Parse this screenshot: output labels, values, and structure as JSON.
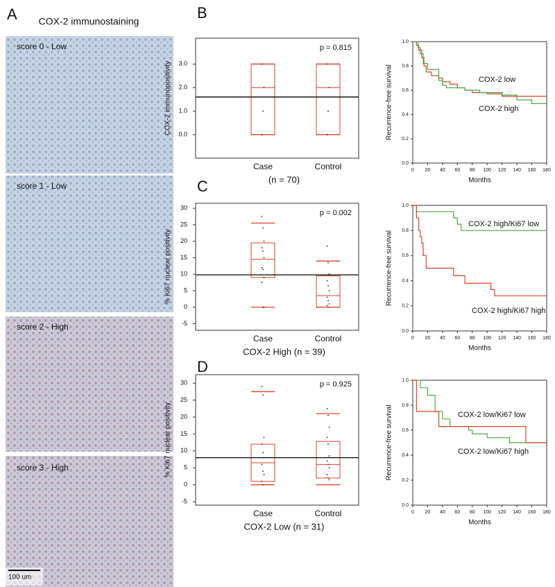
{
  "panel_a": {
    "label": "A",
    "title": "COX-2 immunostaining",
    "images": [
      {
        "label": "score 0 - Low"
      },
      {
        "label": "score 1 - Low"
      },
      {
        "label": "score 2 - High"
      },
      {
        "label": "score 3 - High"
      }
    ],
    "scale_bar": "100 um"
  },
  "chart_data": [
    {
      "type": "box",
      "panel": "B",
      "ylabel": "COX-2 immunopositivity",
      "xlabel": "(n = 70)",
      "annotation": "p = 0.815",
      "categories": [
        "Case",
        "Control"
      ],
      "color": "#d9412b",
      "reference_line": 1.6,
      "ylim": [
        -1,
        4.1
      ],
      "yticks": [
        {
          "value": 0,
          "label": "0.0"
        },
        {
          "value": 1,
          "label": "1.0"
        },
        {
          "value": 2,
          "label": "2.0"
        },
        {
          "value": 3,
          "label": "3.0"
        }
      ],
      "groups": [
        {
          "min": 0,
          "q1": 0,
          "median": 2,
          "q3": 3,
          "max": 3,
          "points": [
            0,
            1,
            2,
            3
          ]
        },
        {
          "min": 0,
          "q1": 0,
          "median": 2,
          "q3": 3,
          "max": 3,
          "points": [
            0,
            1,
            2,
            3
          ]
        }
      ]
    },
    {
      "type": "survival",
      "ylabel": "Recurrence-free survival",
      "xlabel": "Months",
      "xlim": [
        0,
        180
      ],
      "xticks": [
        0,
        20,
        40,
        60,
        80,
        100,
        120,
        140,
        160,
        180
      ],
      "ylim": [
        0,
        1
      ],
      "yticks": [
        {
          "value": 0,
          "label": "0.0"
        },
        {
          "value": 0.2,
          "label": "0.2"
        },
        {
          "value": 0.4,
          "label": "0.4"
        },
        {
          "value": 0.6,
          "label": "0.6"
        },
        {
          "value": 0.8,
          "label": "0.8"
        },
        {
          "value": 1,
          "label": "1.0"
        }
      ],
      "series": [
        {
          "name": "COX-2 low",
          "color": "#d9412b",
          "x": [
            0,
            5,
            8,
            12,
            15,
            18,
            25,
            35,
            40,
            50,
            60,
            70,
            80,
            100,
            120,
            180
          ],
          "values": [
            1,
            0.97,
            0.93,
            0.87,
            0.8,
            0.75,
            0.72,
            0.7,
            0.67,
            0.65,
            0.62,
            0.6,
            0.58,
            0.57,
            0.55,
            0.55
          ]
        },
        {
          "name": "COX-2 high",
          "color": "#4aa84a",
          "x": [
            0,
            7,
            10,
            14,
            20,
            35,
            40,
            45,
            70,
            90,
            120,
            140,
            160,
            180
          ],
          "values": [
            1,
            0.95,
            0.9,
            0.82,
            0.77,
            0.68,
            0.64,
            0.62,
            0.6,
            0.58,
            0.56,
            0.52,
            0.49,
            0.49
          ]
        }
      ]
    },
    {
      "type": "box",
      "panel": "C",
      "ylabel": "% Ki67 nuclear positivity",
      "xlabel": "COX-2 High (n = 39)",
      "annotation": "p = 0.002",
      "categories": [
        "Case",
        "Control"
      ],
      "color": "#d9412b",
      "reference_line": 9.8,
      "ylim": [
        -7,
        31.5
      ],
      "yticks": [
        -5,
        0,
        5,
        10,
        15,
        20,
        25,
        30
      ],
      "groups": [
        {
          "min": 0,
          "q1": 9,
          "median": 14.5,
          "q3": 19.5,
          "max": 25.5,
          "points": [
            27.5,
            24,
            20,
            18,
            17,
            15,
            12,
            11.5,
            9,
            7.5,
            0,
            0
          ]
        },
        {
          "min": 0,
          "q1": 0,
          "median": 3.5,
          "q3": 9.5,
          "max": 14,
          "points": [
            18.5,
            13.5,
            10,
            8,
            6.5,
            5,
            3,
            2,
            1,
            0.5,
            0
          ]
        }
      ]
    },
    {
      "type": "survival",
      "ylabel": "Recurrence-free survival",
      "xlabel": "Months",
      "xlim": [
        0,
        180
      ],
      "xticks": [
        0,
        20,
        40,
        60,
        80,
        100,
        120,
        140,
        160,
        180
      ],
      "ylim": [
        0,
        1
      ],
      "yticks": [
        {
          "value": 0,
          "label": "0.0"
        },
        {
          "value": 0.2,
          "label": "0.2"
        },
        {
          "value": 0.4,
          "label": "0.4"
        },
        {
          "value": 0.6,
          "label": "0.6"
        },
        {
          "value": 0.8,
          "label": "0.8"
        },
        {
          "value": 1,
          "label": "1.0"
        }
      ],
      "series": [
        {
          "name": "COX-2 high/Ki67 low",
          "color": "#4aa84a",
          "x": [
            0,
            5,
            50,
            55,
            60,
            65,
            180
          ],
          "values": [
            1,
            0.95,
            0.95,
            0.9,
            0.85,
            0.8,
            0.8
          ]
        },
        {
          "name": "COX-2 high/Ki67 high",
          "color": "#d9412b",
          "x": [
            0,
            5,
            8,
            10,
            12,
            14,
            18,
            50,
            55,
            70,
            100,
            105,
            110,
            180
          ],
          "values": [
            1,
            0.9,
            0.8,
            0.75,
            0.7,
            0.6,
            0.5,
            0.5,
            0.44,
            0.38,
            0.38,
            0.33,
            0.28,
            0.28
          ]
        }
      ]
    },
    {
      "type": "box",
      "panel": "D",
      "ylabel": "% Ki67 nuclear positivity",
      "xlabel": "COX-2 Low (n = 31)",
      "annotation": "p = 0.925",
      "categories": [
        "Case",
        "Control"
      ],
      "color": "#d9412b",
      "reference_line": 8,
      "ylim": [
        -6,
        32.5
      ],
      "yticks": [
        -5,
        0,
        5,
        10,
        15,
        20,
        25,
        30
      ],
      "groups": [
        {
          "min": 0,
          "q1": 1,
          "median": 6.5,
          "q3": 12,
          "max": 27.5,
          "points": [
            29,
            26.5,
            14,
            12,
            9.5,
            8,
            6,
            4,
            3,
            1,
            0
          ]
        },
        {
          "min": 0,
          "q1": 2,
          "median": 6,
          "q3": 12.8,
          "max": 21,
          "points": [
            22.5,
            20.5,
            17,
            14,
            12,
            8.5,
            7,
            6,
            5,
            3,
            2,
            1.5
          ]
        }
      ]
    },
    {
      "type": "survival",
      "ylabel": "Recurrence-free survival",
      "xlabel": "Months",
      "xlim": [
        0,
        180
      ],
      "xticks": [
        0,
        20,
        40,
        60,
        80,
        100,
        120,
        140,
        160,
        180
      ],
      "ylim": [
        0,
        1
      ],
      "yticks": [
        {
          "value": 0,
          "label": "0.0"
        },
        {
          "value": 0.2,
          "label": "0.2"
        },
        {
          "value": 0.4,
          "label": "0.4"
        },
        {
          "value": 0.6,
          "label": "0.6"
        },
        {
          "value": 0.8,
          "label": "0.8"
        },
        {
          "value": 1,
          "label": "1.0"
        }
      ],
      "series": [
        {
          "name": "COX-2 low/Ki67 low",
          "color": "#4aa84a",
          "x": [
            0,
            10,
            20,
            30,
            40,
            50,
            75,
            80,
            100,
            130,
            180
          ],
          "values": [
            1,
            0.94,
            0.88,
            0.75,
            0.69,
            0.63,
            0.6,
            0.57,
            0.54,
            0.5,
            0.5
          ]
        },
        {
          "name": "COX-2 low/Ki67 high",
          "color": "#d9412b",
          "x": [
            0,
            5,
            35,
            150,
            152,
            180
          ],
          "values": [
            1,
            0.75,
            0.63,
            0.63,
            0.5,
            0.5
          ]
        }
      ]
    }
  ]
}
